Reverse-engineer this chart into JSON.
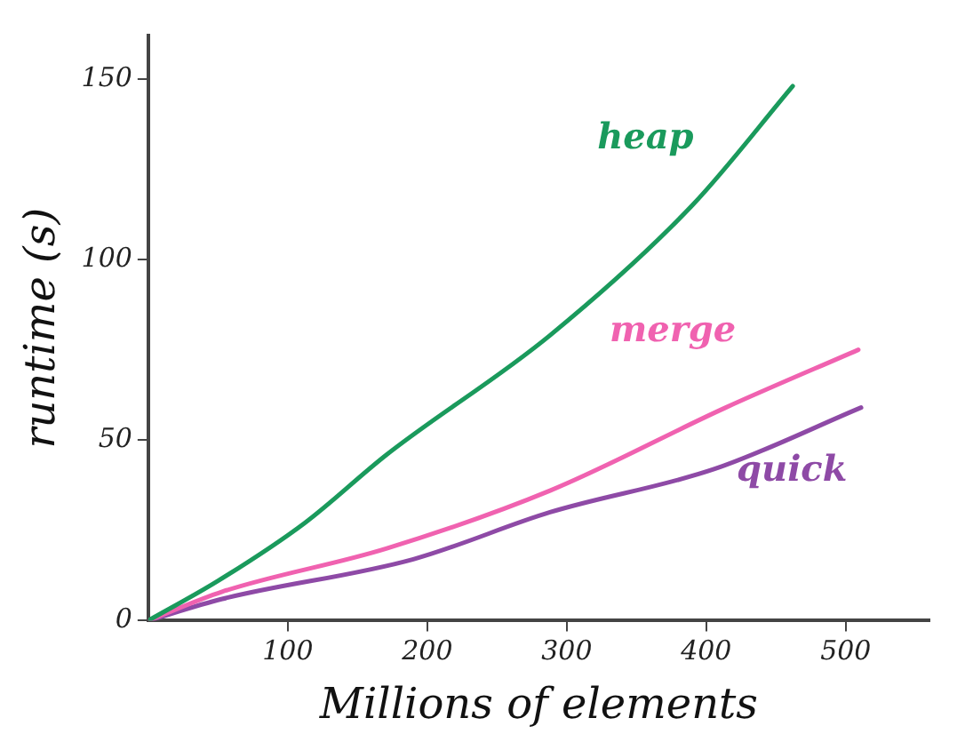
{
  "chart_data": {
    "type": "line",
    "xlabel": "Millions of elements",
    "ylabel": "runtime (s)",
    "xlim": [
      0,
      560
    ],
    "ylim": [
      0,
      162
    ],
    "xticks": [
      100,
      200,
      300,
      400,
      500
    ],
    "yticks": [
      0,
      50,
      100,
      150
    ],
    "grid": false,
    "legend": false,
    "marker": "none",
    "line_style": "solid",
    "series": [
      {
        "name": "heap",
        "color": "#1a9a5c",
        "x": [
          0,
          50,
          112,
          171,
          288,
          390,
          462
        ],
        "values": [
          0,
          11,
          27,
          46,
          79,
          115,
          148
        ]
      },
      {
        "name": "merge",
        "color": "#f062b0",
        "x": [
          0,
          53,
          171,
          288,
          414,
          509
        ],
        "values": [
          0,
          8,
          20,
          36,
          59,
          75
        ]
      },
      {
        "name": "quick",
        "color": "#8e4aa6",
        "x": [
          0,
          53,
          190,
          288,
          406,
          511
        ],
        "values": [
          0,
          6,
          17,
          30,
          42,
          59
        ]
      }
    ]
  }
}
